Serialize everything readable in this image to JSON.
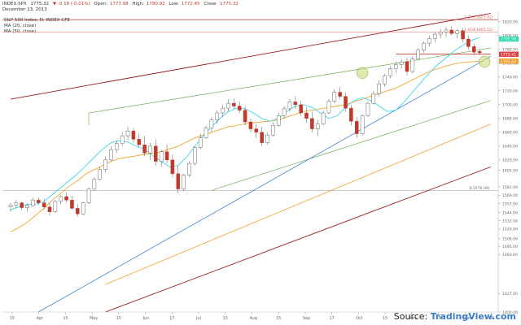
{
  "header": {
    "symbol": "INDEX:SPX",
    "last": "1775.32",
    "change": "▼ -0.18 (-0.01%)",
    "open_label": "Open:",
    "open": "1777.98",
    "high_label": "High:",
    "high": "1780.92",
    "low_label": "Low:",
    "low": "1772.45",
    "close_label": "Close:",
    "close": "1775.32",
    "date": "December 13, 2013",
    "study_title": "S&P 500 Index, D, INDEX CFE",
    "ma1": "MA (20, close)",
    "ma2": "MA (50, close)"
  },
  "credit": {
    "source_label": "Source:",
    "brand": "TradingView.com"
  },
  "colors": {
    "up": "#ffffff",
    "down": "#c0392b",
    "wick": "#555555",
    "ma20": "#3dd6e8",
    "ma50": "#f0a830",
    "channel_red": "#9b1a1a",
    "trend_green": "#6aa84f",
    "trend_blue": "#3d7fc8",
    "trend_orange": "#f0a030",
    "fib_line": "#e06060",
    "highlight": "#c8d86a"
  },
  "chart_data": {
    "type": "candlestick",
    "title": "S&P 500 Index, D, INDEX CFE",
    "ylim": [
      1400,
      1835
    ],
    "x_ticks": [
      "15",
      "Apr",
      "15",
      "May",
      "15",
      "Jun",
      "17",
      "Jul",
      "15",
      "Aug",
      "15",
      "Sep",
      "17",
      "Oct",
      "15",
      "Nov",
      "15",
      "Dec",
      "16"
    ],
    "y_ticks": [
      {
        "label": "1820.00",
        "value": 1820
      },
      {
        "label": "1800.00",
        "value": 1800
      },
      {
        "label": "1780.00",
        "value": 1780
      },
      {
        "label": "1760.00",
        "value": 1760
      },
      {
        "label": "1740.00",
        "value": 1740
      },
      {
        "label": "1720.00",
        "value": 1720
      },
      {
        "label": "1700.00",
        "value": 1700
      },
      {
        "label": "1680.00",
        "value": 1680
      },
      {
        "label": "1660.00",
        "value": 1660
      },
      {
        "label": "1640.00",
        "value": 1640
      },
      {
        "label": "1620.00",
        "value": 1620
      },
      {
        "label": "1605.00",
        "value": 1605
      },
      {
        "label": "1581.00",
        "value": 1581
      },
      {
        "label": "1569.00",
        "value": 1569
      },
      {
        "label": "1557.00",
        "value": 1557
      },
      {
        "label": "1544.00",
        "value": 1544
      },
      {
        "label": "1532.00",
        "value": 1532
      },
      {
        "label": "1520.00",
        "value": 1520
      },
      {
        "label": "1506.00",
        "value": 1506
      },
      {
        "label": "1495.00",
        "value": 1495
      },
      {
        "label": "1483.00",
        "value": 1483
      },
      {
        "label": "1427.00",
        "value": 1427
      },
      {
        "label": "1400.00",
        "value": 1400
      }
    ],
    "price_badges": [
      {
        "label": "1795.56",
        "value": 1795,
        "color": "#2fd6b4"
      },
      {
        "label": "1773.41",
        "value": 1773,
        "color": "#e04040"
      },
      {
        "label": "1763.24",
        "value": 1763,
        "color": "#f0a030"
      }
    ],
    "annotations": [
      {
        "label": "1.272(1823.42)",
        "value": 1823
      },
      {
        "label": "1.618(1805.52)",
        "value": 1805
      },
      {
        "label": "1(1576.09)",
        "value": 1576
      }
    ],
    "candles": [
      {
        "o": 1552,
        "h": 1558,
        "l": 1545,
        "c": 1555
      },
      {
        "o": 1555,
        "h": 1562,
        "l": 1550,
        "c": 1558
      },
      {
        "o": 1558,
        "h": 1560,
        "l": 1548,
        "c": 1551
      },
      {
        "o": 1551,
        "h": 1557,
        "l": 1545,
        "c": 1554
      },
      {
        "o": 1554,
        "h": 1565,
        "l": 1552,
        "c": 1562
      },
      {
        "o": 1562,
        "h": 1566,
        "l": 1555,
        "c": 1558
      },
      {
        "o": 1558,
        "h": 1564,
        "l": 1548,
        "c": 1552
      },
      {
        "o": 1552,
        "h": 1558,
        "l": 1540,
        "c": 1545
      },
      {
        "o": 1545,
        "h": 1562,
        "l": 1543,
        "c": 1560
      },
      {
        "o": 1560,
        "h": 1570,
        "l": 1556,
        "c": 1567
      },
      {
        "o": 1567,
        "h": 1573,
        "l": 1558,
        "c": 1562
      },
      {
        "o": 1562,
        "h": 1568,
        "l": 1548,
        "c": 1550
      },
      {
        "o": 1550,
        "h": 1556,
        "l": 1538,
        "c": 1542
      },
      {
        "o": 1542,
        "h": 1560,
        "l": 1540,
        "c": 1558
      },
      {
        "o": 1558,
        "h": 1580,
        "l": 1556,
        "c": 1578
      },
      {
        "o": 1578,
        "h": 1595,
        "l": 1575,
        "c": 1592
      },
      {
        "o": 1592,
        "h": 1610,
        "l": 1590,
        "c": 1606
      },
      {
        "o": 1606,
        "h": 1625,
        "l": 1602,
        "c": 1620
      },
      {
        "o": 1620,
        "h": 1640,
        "l": 1618,
        "c": 1635
      },
      {
        "o": 1635,
        "h": 1648,
        "l": 1630,
        "c": 1644
      },
      {
        "o": 1644,
        "h": 1660,
        "l": 1640,
        "c": 1655
      },
      {
        "o": 1655,
        "h": 1668,
        "l": 1648,
        "c": 1662
      },
      {
        "o": 1662,
        "h": 1666,
        "l": 1645,
        "c": 1650
      },
      {
        "o": 1650,
        "h": 1658,
        "l": 1638,
        "c": 1642
      },
      {
        "o": 1642,
        "h": 1655,
        "l": 1625,
        "c": 1630
      },
      {
        "o": 1630,
        "h": 1645,
        "l": 1620,
        "c": 1640
      },
      {
        "o": 1640,
        "h": 1650,
        "l": 1612,
        "c": 1618
      },
      {
        "o": 1618,
        "h": 1635,
        "l": 1610,
        "c": 1632
      },
      {
        "o": 1632,
        "h": 1642,
        "l": 1615,
        "c": 1620
      },
      {
        "o": 1620,
        "h": 1628,
        "l": 1595,
        "c": 1600
      },
      {
        "o": 1600,
        "h": 1612,
        "l": 1572,
        "c": 1578
      },
      {
        "o": 1578,
        "h": 1600,
        "l": 1575,
        "c": 1598
      },
      {
        "o": 1598,
        "h": 1618,
        "l": 1595,
        "c": 1615
      },
      {
        "o": 1615,
        "h": 1640,
        "l": 1612,
        "c": 1638
      },
      {
        "o": 1638,
        "h": 1658,
        "l": 1635,
        "c": 1652
      },
      {
        "o": 1652,
        "h": 1670,
        "l": 1650,
        "c": 1666
      },
      {
        "o": 1666,
        "h": 1682,
        "l": 1660,
        "c": 1678
      },
      {
        "o": 1678,
        "h": 1692,
        "l": 1672,
        "c": 1688
      },
      {
        "o": 1688,
        "h": 1700,
        "l": 1682,
        "c": 1695
      },
      {
        "o": 1695,
        "h": 1708,
        "l": 1690,
        "c": 1702
      },
      {
        "o": 1702,
        "h": 1709,
        "l": 1694,
        "c": 1698
      },
      {
        "o": 1698,
        "h": 1704,
        "l": 1688,
        "c": 1692
      },
      {
        "o": 1692,
        "h": 1698,
        "l": 1670,
        "c": 1675
      },
      {
        "o": 1675,
        "h": 1680,
        "l": 1660,
        "c": 1665
      },
      {
        "o": 1665,
        "h": 1672,
        "l": 1652,
        "c": 1660
      },
      {
        "o": 1660,
        "h": 1668,
        "l": 1640,
        "c": 1645
      },
      {
        "o": 1645,
        "h": 1660,
        "l": 1642,
        "c": 1656
      },
      {
        "o": 1656,
        "h": 1675,
        "l": 1654,
        "c": 1670
      },
      {
        "o": 1670,
        "h": 1688,
        "l": 1668,
        "c": 1684
      },
      {
        "o": 1684,
        "h": 1698,
        "l": 1680,
        "c": 1694
      },
      {
        "o": 1694,
        "h": 1708,
        "l": 1690,
        "c": 1704
      },
      {
        "o": 1704,
        "h": 1712,
        "l": 1694,
        "c": 1700
      },
      {
        "o": 1700,
        "h": 1706,
        "l": 1684,
        "c": 1688
      },
      {
        "o": 1688,
        "h": 1696,
        "l": 1674,
        "c": 1680
      },
      {
        "o": 1680,
        "h": 1690,
        "l": 1660,
        "c": 1665
      },
      {
        "o": 1665,
        "h": 1678,
        "l": 1655,
        "c": 1672
      },
      {
        "o": 1672,
        "h": 1692,
        "l": 1670,
        "c": 1688
      },
      {
        "o": 1688,
        "h": 1708,
        "l": 1686,
        "c": 1705
      },
      {
        "o": 1705,
        "h": 1722,
        "l": 1702,
        "c": 1718
      },
      {
        "o": 1718,
        "h": 1726,
        "l": 1708,
        "c": 1712
      },
      {
        "o": 1712,
        "h": 1718,
        "l": 1690,
        "c": 1695
      },
      {
        "o": 1695,
        "h": 1700,
        "l": 1670,
        "c": 1676
      },
      {
        "o": 1676,
        "h": 1682,
        "l": 1652,
        "c": 1658
      },
      {
        "o": 1658,
        "h": 1686,
        "l": 1655,
        "c": 1684
      },
      {
        "o": 1684,
        "h": 1705,
        "l": 1682,
        "c": 1702
      },
      {
        "o": 1702,
        "h": 1720,
        "l": 1700,
        "c": 1716
      },
      {
        "o": 1716,
        "h": 1735,
        "l": 1712,
        "c": 1730
      },
      {
        "o": 1730,
        "h": 1745,
        "l": 1726,
        "c": 1742
      },
      {
        "o": 1742,
        "h": 1756,
        "l": 1738,
        "c": 1752
      },
      {
        "o": 1752,
        "h": 1762,
        "l": 1746,
        "c": 1758
      },
      {
        "o": 1758,
        "h": 1766,
        "l": 1752,
        "c": 1762
      },
      {
        "o": 1762,
        "h": 1768,
        "l": 1742,
        "c": 1748
      },
      {
        "o": 1748,
        "h": 1770,
        "l": 1745,
        "c": 1766
      },
      {
        "o": 1766,
        "h": 1782,
        "l": 1764,
        "c": 1779
      },
      {
        "o": 1779,
        "h": 1792,
        "l": 1775,
        "c": 1789
      },
      {
        "o": 1789,
        "h": 1800,
        "l": 1784,
        "c": 1796
      },
      {
        "o": 1796,
        "h": 1806,
        "l": 1790,
        "c": 1802
      },
      {
        "o": 1802,
        "h": 1810,
        "l": 1796,
        "c": 1805
      },
      {
        "o": 1805,
        "h": 1812,
        "l": 1798,
        "c": 1808
      },
      {
        "o": 1808,
        "h": 1813,
        "l": 1800,
        "c": 1803
      },
      {
        "o": 1803,
        "h": 1810,
        "l": 1796,
        "c": 1807
      },
      {
        "o": 1807,
        "h": 1811,
        "l": 1790,
        "c": 1795
      },
      {
        "o": 1795,
        "h": 1800,
        "l": 1780,
        "c": 1784
      },
      {
        "o": 1784,
        "h": 1788,
        "l": 1772,
        "c": 1776
      },
      {
        "o": 1777,
        "h": 1781,
        "l": 1772,
        "c": 1775
      }
    ],
    "ma20": [
      1548,
      1552,
      1556,
      1556,
      1560,
      1570,
      1580,
      1590,
      1600,
      1612,
      1624,
      1636,
      1645,
      1648,
      1646,
      1640,
      1635,
      1626,
      1618,
      1610,
      1612,
      1624,
      1640,
      1655,
      1668,
      1680,
      1690,
      1695,
      1694,
      1688,
      1680,
      1676,
      1680,
      1690,
      1698,
      1700,
      1696,
      1688,
      1680,
      1684,
      1696,
      1706,
      1710,
      1706,
      1698,
      1690,
      1692,
      1704,
      1718,
      1732,
      1746,
      1758,
      1768,
      1778,
      1786,
      1793,
      1797
    ],
    "ma50": [
      1516,
      1522,
      1530,
      1540,
      1550,
      1562,
      1572,
      1582,
      1590,
      1600,
      1606,
      1612,
      1618,
      1622,
      1624,
      1626,
      1628,
      1630,
      1632,
      1636,
      1640,
      1646,
      1652,
      1656,
      1660,
      1664,
      1668,
      1670,
      1672,
      1674,
      1675,
      1676,
      1678,
      1682,
      1686,
      1690,
      1692,
      1694,
      1696,
      1698,
      1700,
      1704,
      1708,
      1712,
      1716,
      1720,
      1724,
      1730,
      1736,
      1742,
      1748,
      1752,
      1756,
      1759,
      1761,
      1762,
      1763
    ]
  }
}
